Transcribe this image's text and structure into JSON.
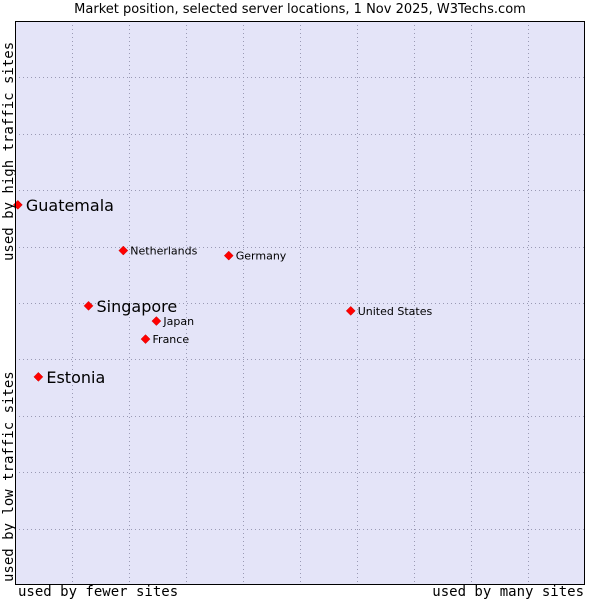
{
  "chart_data": {
    "type": "scatter",
    "title": "Market position, selected server locations, 1 Nov 2025, W3Techs.com",
    "xlabel_left": "used by fewer sites",
    "xlabel_right": "used by many sites",
    "ylabel_top": "used by high traffic sites",
    "ylabel_bottom": "used by low traffic sites",
    "xlim": [
      0,
      100
    ],
    "ylim": [
      0,
      100
    ],
    "grid": true,
    "marker_color": "#ff0000",
    "points": [
      {
        "name": "Guatemala",
        "x": 0.5,
        "y": 67.4,
        "emphasis": true
      },
      {
        "name": "Netherlands",
        "x": 19.0,
        "y": 59.3,
        "emphasis": false
      },
      {
        "name": "Germany",
        "x": 37.5,
        "y": 58.4,
        "emphasis": false
      },
      {
        "name": "Singapore",
        "x": 12.9,
        "y": 49.5,
        "emphasis": true
      },
      {
        "name": "Japan",
        "x": 24.8,
        "y": 46.8,
        "emphasis": false
      },
      {
        "name": "United States",
        "x": 58.9,
        "y": 48.6,
        "emphasis": false
      },
      {
        "name": "France",
        "x": 22.9,
        "y": 43.6,
        "emphasis": false
      },
      {
        "name": "Estonia",
        "x": 4.1,
        "y": 36.9,
        "emphasis": true
      }
    ]
  },
  "colors": {
    "plot_background": "#e4e4f8",
    "grid": "#9a9ab4",
    "marker": "#ff0000"
  }
}
